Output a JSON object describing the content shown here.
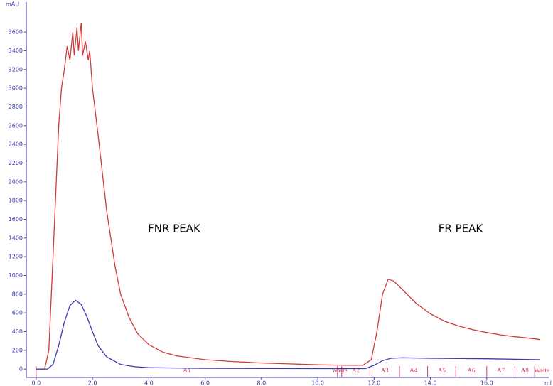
{
  "chart_data": {
    "type": "line",
    "y_label": "mAU",
    "x_label": "ml",
    "annotations": [
      "FNR PEAK",
      "FR PEAK"
    ],
    "xlim": [
      -0.35,
      18.2
    ],
    "ylim": [
      -90,
      3920
    ],
    "xticks": [
      {
        "value": 0,
        "label": "0.0"
      },
      {
        "value": 2,
        "label": "2.0"
      },
      {
        "value": 4,
        "label": "4.0"
      },
      {
        "value": 6,
        "label": "6.0"
      },
      {
        "value": 8,
        "label": "8.0"
      },
      {
        "value": 10,
        "label": "10.0"
      },
      {
        "value": 12,
        "label": "12.0"
      },
      {
        "value": 14,
        "label": "14.0"
      },
      {
        "value": 16,
        "label": "16.0"
      }
    ],
    "yticks": [
      0,
      200,
      400,
      600,
      800,
      1000,
      1200,
      1400,
      1600,
      1800,
      2000,
      2200,
      2400,
      2600,
      2800,
      3000,
      3200,
      3400,
      3600
    ],
    "axis_color": "#3a3aa8",
    "fractions": {
      "color": "#d0405a",
      "marks": [
        0,
        10.7,
        10.85,
        11.85,
        12.9,
        13.9,
        14.9,
        16.0,
        17.0,
        17.7
      ],
      "labels": [
        "A1",
        "Waste",
        "A2",
        "A3",
        "A4",
        "A5",
        "A6",
        "A7",
        "A8",
        "Waste"
      ]
    },
    "series": [
      {
        "color": "#d23a3a",
        "x": [
          0,
          0.3,
          0.45,
          0.6,
          0.8,
          0.9,
          1.0,
          1.1,
          1.2,
          1.3,
          1.35,
          1.45,
          1.5,
          1.6,
          1.65,
          1.75,
          1.85,
          1.9,
          2.0,
          2.2,
          2.5,
          2.8,
          3.0,
          3.3,
          3.6,
          4.0,
          4.5,
          5.0,
          6.0,
          7.0,
          8.0,
          9.0,
          10.0,
          11.0,
          11.6,
          11.9,
          12.1,
          12.3,
          12.5,
          12.7,
          13.0,
          13.5,
          14.0,
          14.5,
          15.0,
          15.5,
          16.0,
          16.5,
          17.0,
          17.5,
          17.9
        ],
        "values": [
          0,
          0,
          200,
          1200,
          2600,
          3000,
          3200,
          3450,
          3300,
          3600,
          3350,
          3650,
          3400,
          3700,
          3350,
          3500,
          3300,
          3400,
          3000,
          2500,
          1700,
          1100,
          800,
          550,
          380,
          260,
          180,
          140,
          100,
          80,
          65,
          55,
          45,
          40,
          40,
          100,
          400,
          800,
          960,
          940,
          850,
          700,
          590,
          510,
          460,
          420,
          390,
          365,
          345,
          330,
          315
        ]
      },
      {
        "color": "#3a3ab8",
        "x": [
          0,
          0.4,
          0.6,
          0.8,
          1.0,
          1.2,
          1.4,
          1.6,
          1.8,
          2.0,
          2.2,
          2.5,
          3.0,
          3.5,
          4.0,
          6.0,
          10.0,
          11.7,
          12.0,
          12.3,
          12.6,
          13.0,
          14.0,
          16.0,
          17.9
        ],
        "values": [
          0,
          0,
          50,
          250,
          500,
          680,
          735,
          690,
          560,
          400,
          250,
          130,
          50,
          25,
          15,
          8,
          5,
          5,
          40,
          90,
          115,
          120,
          115,
          110,
          100
        ]
      }
    ]
  }
}
